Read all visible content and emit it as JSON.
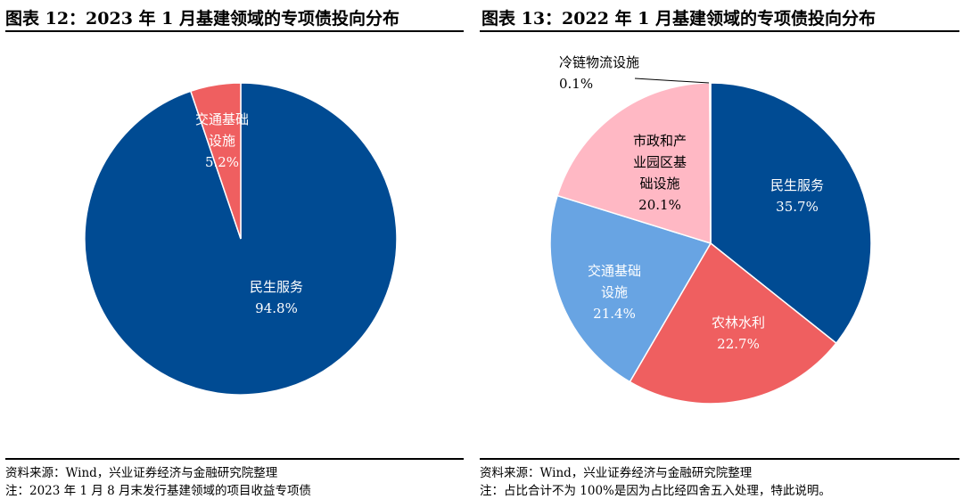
{
  "left": {
    "title": "图表 12：2023 年 1 月基建领域的专项债投向分布",
    "source": "资料来源：Wind，兴业证券经济与金融研究院整理",
    "note": "注：2023 年 1 月 8 月末发行基建领域的项目收益专项债"
  },
  "right": {
    "title": "图表 13：2022 年 1 月基建领域的专项债投向分布",
    "source": "资料来源：Wind，兴业证券经济与金融研究院整理",
    "note": "注：占比合计不为 100%是因为占比经四舍五入处理，特此说明。"
  },
  "chart_data": [
    {
      "type": "pie",
      "title": "图表 12：2023 年 1 月基建领域的专项债投向分布",
      "slices": [
        {
          "label": "民生服务",
          "value": 94.8,
          "text": "94.8%",
          "color": "#004B93"
        },
        {
          "label": "交通基础设施",
          "label_lines": [
            "交通基础",
            "设施"
          ],
          "value": 5.2,
          "text": "5.2%",
          "color": "#EF5F60"
        }
      ]
    },
    {
      "type": "pie",
      "title": "图表 13：2022 年 1 月基建领域的专项债投向分布",
      "slices": [
        {
          "label": "民生服务",
          "value": 35.7,
          "text": "35.7%",
          "color": "#004B93"
        },
        {
          "label": "农林水利",
          "value": 22.7,
          "text": "22.7%",
          "color": "#EF5F60"
        },
        {
          "label": "交通基础设施",
          "label_lines": [
            "交通基础",
            "设施"
          ],
          "value": 21.4,
          "text": "21.4%",
          "color": "#68A4E3"
        },
        {
          "label": "市政和产业园区基础设施",
          "label_lines": [
            "市政和产",
            "业园区基",
            "础设施"
          ],
          "value": 20.1,
          "text": "20.1%",
          "color": "#FFB8C4"
        },
        {
          "label": "冷链物流设施",
          "value": 0.1,
          "text": "0.1%",
          "color": "#004B93"
        }
      ]
    }
  ]
}
